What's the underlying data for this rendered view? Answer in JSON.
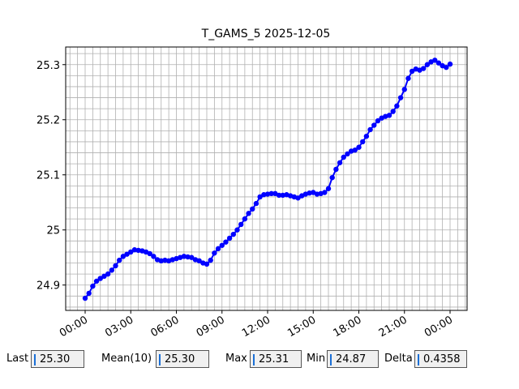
{
  "chart_data": {
    "type": "line",
    "title": "T_GAMS_5 2025-12-05",
    "x": [
      0,
      0.25,
      0.5,
      0.75,
      1,
      1.25,
      1.5,
      1.75,
      2,
      2.25,
      2.5,
      2.75,
      3,
      3.25,
      3.5,
      3.75,
      4,
      4.25,
      4.5,
      4.75,
      5,
      5.25,
      5.5,
      5.75,
      6,
      6.25,
      6.5,
      6.75,
      7,
      7.25,
      7.5,
      7.75,
      8,
      8.25,
      8.5,
      8.75,
      9,
      9.25,
      9.5,
      9.75,
      10,
      10.25,
      10.5,
      10.75,
      11,
      11.25,
      11.5,
      11.75,
      12,
      12.25,
      12.5,
      12.75,
      13,
      13.25,
      13.5,
      13.75,
      14,
      14.25,
      14.5,
      14.75,
      15,
      15.25,
      15.5,
      15.75,
      16,
      16.25,
      16.5,
      16.75,
      17,
      17.25,
      17.5,
      17.75,
      18,
      18.25,
      18.5,
      18.75,
      19,
      19.25,
      19.5,
      19.75,
      20,
      20.25,
      20.5,
      20.75,
      21,
      21.25,
      21.5,
      21.75,
      22,
      22.25,
      22.5,
      22.75,
      23,
      23.25,
      23.5,
      23.75,
      24
    ],
    "series": [
      {
        "color": "#0000ff",
        "values": [
          24.876,
          24.885,
          24.898,
          24.907,
          24.912,
          24.916,
          24.92,
          24.927,
          24.935,
          24.945,
          24.952,
          24.956,
          24.96,
          24.964,
          24.963,
          24.962,
          24.96,
          24.957,
          24.952,
          24.946,
          24.944,
          24.945,
          24.944,
          24.946,
          24.948,
          24.95,
          24.952,
          24.951,
          24.95,
          24.946,
          24.944,
          24.94,
          24.938,
          24.945,
          24.958,
          24.966,
          24.972,
          24.978,
          24.985,
          24.992,
          25.0,
          25.01,
          25.02,
          25.03,
          25.038,
          25.048,
          25.06,
          25.064,
          25.065,
          25.066,
          25.066,
          25.063,
          25.063,
          25.064,
          25.062,
          25.06,
          25.058,
          25.062,
          25.065,
          25.067,
          25.068,
          25.065,
          25.066,
          25.068,
          25.075,
          25.095,
          25.11,
          25.122,
          25.132,
          25.138,
          25.143,
          25.145,
          25.15,
          25.16,
          25.17,
          25.182,
          25.19,
          25.198,
          25.203,
          25.206,
          25.208,
          25.215,
          25.225,
          25.24,
          25.255,
          25.275,
          25.288,
          25.292,
          25.29,
          25.293,
          25.3,
          25.305,
          25.308,
          25.303,
          25.298,
          25.295,
          25.301
        ]
      }
    ],
    "xlim": [
      -1.28,
      25.12
    ],
    "xticks": [
      {
        "value": 0,
        "label": "00:00"
      },
      {
        "value": 3,
        "label": "03:00"
      },
      {
        "value": 6,
        "label": "06:00"
      },
      {
        "value": 9,
        "label": "09:00"
      },
      {
        "value": 12,
        "label": "12:00"
      },
      {
        "value": 15,
        "label": "15:00"
      },
      {
        "value": 18,
        "label": "18:00"
      },
      {
        "value": 21,
        "label": "21:00"
      },
      {
        "value": 24,
        "label": "00:00"
      }
    ],
    "ylim": [
      24.854,
      25.332
    ],
    "yticks": [
      24.9,
      25.0,
      25.1,
      25.2,
      25.3
    ],
    "grid": true,
    "x_minor_step": 0.5,
    "y_minor_step": 0.02
  },
  "status_bar": [
    {
      "label": "Last",
      "value": "25.30"
    },
    {
      "label": "Mean(10)",
      "value": "25.30"
    },
    {
      "label": "Max",
      "value": "25.31"
    },
    {
      "label": "Min",
      "value": "24.87"
    },
    {
      "label": "Delta",
      "value": "0.4358"
    }
  ]
}
